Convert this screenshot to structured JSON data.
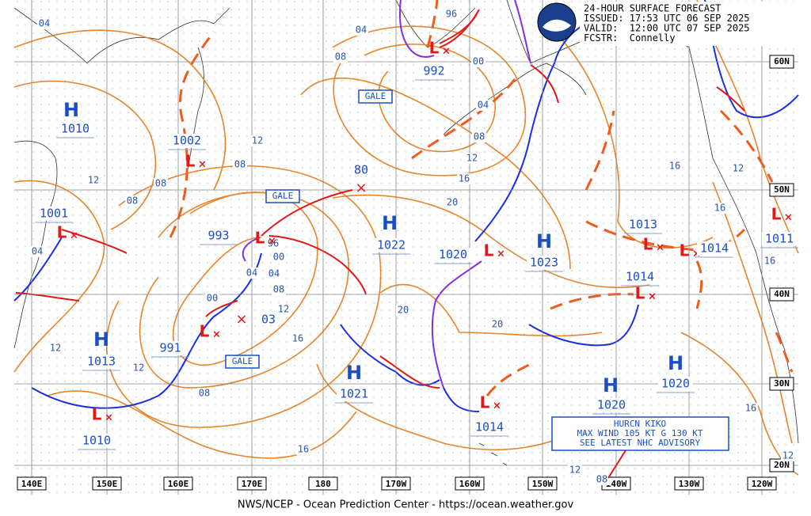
{
  "header": {
    "lines": [
      "24-HOUR SURFACE FORECAST",
      "ISSUED: 17:53 UTC 06 SEP 2025",
      "VALID:  12:00 UTC 07 SEP 2025",
      "FCSTR:  Connelly"
    ]
  },
  "footer": "NWS/NCEP - Ocean Prediction Center - https://ocean.weather.gov",
  "longitudes": [
    "140E",
    "150E",
    "160E",
    "170E",
    "180",
    "170W",
    "160W",
    "150W",
    "140W",
    "130W",
    "120W"
  ],
  "latitudes": [
    "60N",
    "50N",
    "40N",
    "30N",
    "20N"
  ],
  "centers": [
    {
      "symbol": "H",
      "pressure": "1010"
    },
    {
      "symbol": "L",
      "pressure": "1002"
    },
    {
      "symbol": "L",
      "pressure": "1001"
    },
    {
      "symbol": "L",
      "pressure": "993"
    },
    {
      "symbol": "L",
      "pressure": "991"
    },
    {
      "symbol": "H",
      "pressure": "1013"
    },
    {
      "symbol": "L",
      "pressure": "1010"
    },
    {
      "symbol": "L",
      "pressure": "992"
    },
    {
      "symbol": "H",
      "pressure": "1022"
    },
    {
      "symbol": "L",
      "pressure": "1020"
    },
    {
      "symbol": "H",
      "pressure": "1023"
    },
    {
      "symbol": "L",
      "pressure": "1013"
    },
    {
      "symbol": "L",
      "pressure": "1014"
    },
    {
      "symbol": "L",
      "pressure": "1014"
    },
    {
      "symbol": "L",
      "pressure": "1011"
    },
    {
      "symbol": "H",
      "pressure": "1021"
    },
    {
      "symbol": "H",
      "pressure": "1020"
    },
    {
      "symbol": "H",
      "pressure": "1020"
    },
    {
      "symbol": "L",
      "pressure": "1014"
    }
  ],
  "forecast_positions": [
    "80",
    "03"
  ],
  "isobar_labels": [
    "04",
    "08",
    "12",
    "08",
    "04",
    "08",
    "12",
    "08",
    "04",
    "12",
    "12",
    "00",
    "04",
    "08",
    "12",
    "16",
    "20",
    "20",
    "16",
    "08",
    "12",
    "04",
    "00",
    "08",
    "16",
    "16",
    "12",
    "16",
    "16",
    "16",
    "20",
    "12",
    "96",
    "96",
    "00",
    "04",
    "00",
    "12",
    "08"
  ],
  "gale": [
    "GALE",
    "GALE",
    "GALE"
  ],
  "hurricane": [
    "HURCN KIKO",
    "MAX WIND 105 KT G 130 KT",
    "SEE LATEST NHC ADVISORY"
  ]
}
